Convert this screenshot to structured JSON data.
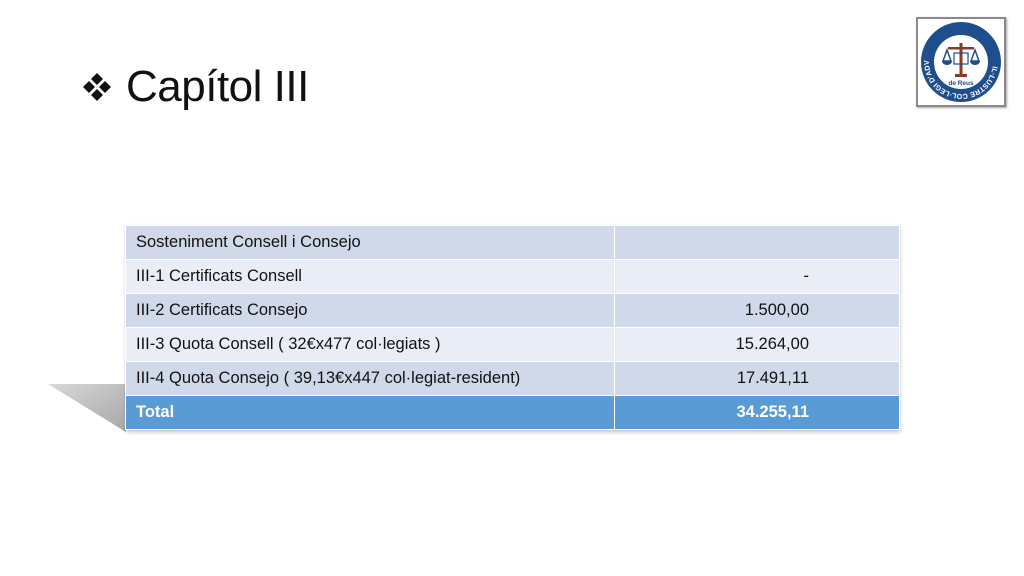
{
  "slide": {
    "title": "Capítol III"
  },
  "logo": {
    "ring_text": "IL·LUSTRE COL·LEGI D'ADVOCATS",
    "bottom_text": "de Reus"
  },
  "table": {
    "rows": [
      {
        "label": "Sosteniment Consell i Consejo",
        "value": ""
      },
      {
        "label": "III-1 Certificats Consell",
        "value": "-"
      },
      {
        "label": "III-2 Certificats Consejo",
        "value": "1.500,00"
      },
      {
        "label": "III-3 Quota Consell ( 32€x477 col·legiats )",
        "value": "15.264,00"
      },
      {
        "label": "III-4 Quota Consejo ( 39,13€x447 col·legiat-resident)",
        "value": "17.491,11"
      }
    ],
    "total": {
      "label": "Total",
      "value": "34.255,11"
    }
  },
  "colors": {
    "header_fill": "#cfd9ea",
    "band_fill": "#e9eef6",
    "total_fill": "#5b9bd5",
    "logo_blue": "#1f4e8c",
    "logo_brown": "#8b3a2a"
  }
}
